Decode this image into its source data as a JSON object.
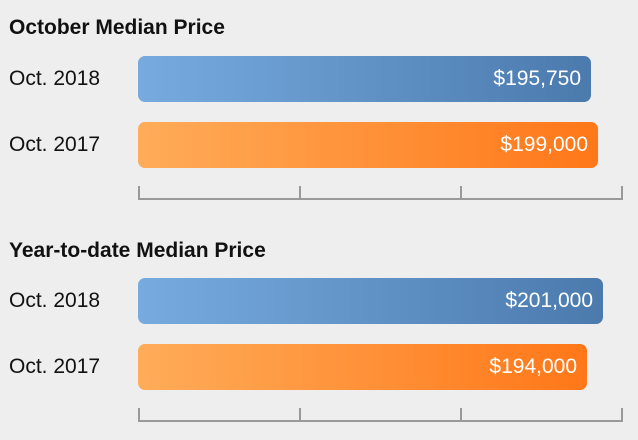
{
  "chart_data": [
    {
      "type": "bar",
      "orientation": "horizontal",
      "title": "October Median Price",
      "categories": [
        "Oct. 2018",
        "Oct. 2017"
      ],
      "values": [
        195750,
        199000
      ],
      "value_labels": [
        "$195,750",
        "$199,000"
      ],
      "colors": [
        "#5b8ec7",
        "#ff8c35"
      ],
      "xlim": [
        0,
        201000
      ],
      "grid": false
    },
    {
      "type": "bar",
      "orientation": "horizontal",
      "title": "Year-to-date Median Price",
      "categories": [
        "Oct. 2018",
        "Oct. 2017"
      ],
      "values": [
        201000,
        194000
      ],
      "value_labels": [
        "$201,000",
        "$194,000"
      ],
      "colors": [
        "#5b8ec7",
        "#ff8c35"
      ],
      "xlim": [
        0,
        201000
      ],
      "grid": false
    }
  ]
}
